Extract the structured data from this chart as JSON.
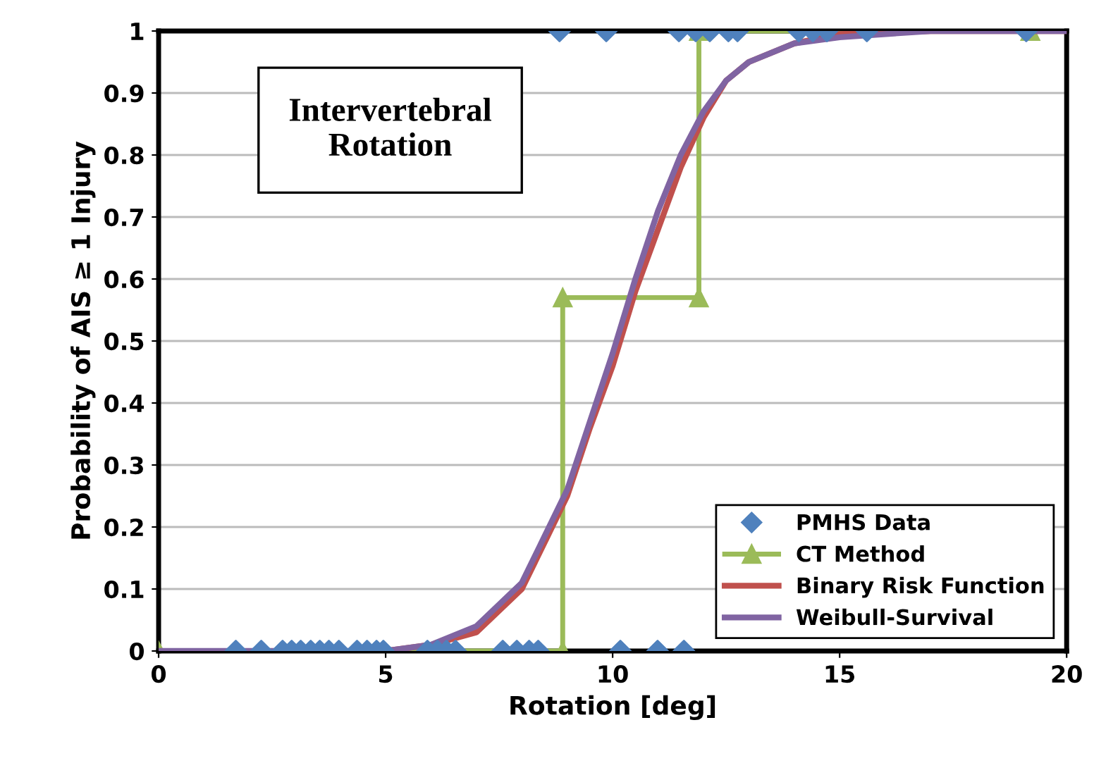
{
  "chart_data": {
    "type": "line",
    "xlabel": "Rotation [deg]",
    "ylabel": "Probability of AIS ≥ 1 Injury",
    "annotations": [
      "Intervertebral\nRotation"
    ],
    "xlim": [
      0,
      20
    ],
    "xticks": [
      0,
      5,
      10,
      15,
      20
    ],
    "ylim": [
      0,
      1
    ],
    "yticks": [
      0,
      {
        "value": 0.1,
        "label": "0.1"
      },
      {
        "value": 0.2,
        "label": "0.2"
      },
      {
        "value": 0.3,
        "label": "0.3"
      },
      {
        "value": 0.4,
        "label": "0.4"
      },
      {
        "value": 0.5,
        "label": "0.5"
      },
      {
        "value": 0.6,
        "label": "0.6"
      },
      {
        "value": 0.7,
        "label": "0.7"
      },
      {
        "value": 0.8,
        "label": "0.8"
      },
      {
        "value": 0.9,
        "label": "0.9"
      },
      1
    ],
    "grid": "y",
    "legend": "bottom right",
    "series": [
      {
        "name": "PMHS Data",
        "type": "scatter",
        "marker": "diamond",
        "color": "#4f81bd",
        "x": [
          1.7,
          2.26,
          2.73,
          2.93,
          3.13,
          3.35,
          3.55,
          3.75,
          3.97,
          4.37,
          4.59,
          4.8,
          4.95,
          5.92,
          6.14,
          6.34,
          6.54,
          7.58,
          7.89,
          8.16,
          8.36,
          10.17,
          10.99,
          11.57,
          8.83,
          9.86,
          11.46,
          11.83,
          12.14,
          12.55,
          12.75,
          14.1,
          14.41,
          14.72,
          15.6,
          19.11
        ],
        "values": [
          0,
          0,
          0,
          0,
          0,
          0,
          0,
          0,
          0,
          0,
          0,
          0,
          0,
          0,
          0,
          0,
          0,
          0,
          0,
          0,
          0,
          0,
          0,
          0,
          1,
          1,
          1,
          1,
          1,
          1,
          1,
          1,
          1,
          1,
          1,
          1
        ]
      },
      {
        "name": "CT Method",
        "marker": "triangle",
        "line_style": "solid",
        "color": "#9bbb59",
        "x": [
          0,
          8.9,
          8.9,
          11.9,
          11.9,
          19.2
        ],
        "values": [
          0,
          0,
          0.57,
          0.57,
          1,
          1
        ]
      },
      {
        "name": "Binary Risk Function",
        "marker": "none",
        "line_style": "solid",
        "color": "#c0504d",
        "x": [
          5,
          6,
          7,
          8,
          9,
          9.5,
          10,
          10.5,
          11,
          11.5,
          12,
          12.5,
          13,
          14,
          15,
          17,
          20
        ],
        "values": [
          0.0,
          0.01,
          0.03,
          0.1,
          0.25,
          0.36,
          0.46,
          0.58,
          0.68,
          0.78,
          0.86,
          0.92,
          0.95,
          0.98,
          0.995,
          1,
          1
        ]
      },
      {
        "name": "Weibull-Survival",
        "marker": "none",
        "line_style": "solid",
        "color": "#8064a2",
        "x": [
          0,
          5,
          6,
          7,
          8,
          9,
          9.5,
          10,
          10.5,
          11,
          11.5,
          12,
          12.5,
          13,
          14,
          15,
          17,
          20
        ],
        "values": [
          0,
          0.0,
          0.01,
          0.04,
          0.11,
          0.26,
          0.37,
          0.48,
          0.6,
          0.71,
          0.8,
          0.87,
          0.92,
          0.95,
          0.98,
          0.99,
          1,
          1
        ]
      }
    ]
  }
}
